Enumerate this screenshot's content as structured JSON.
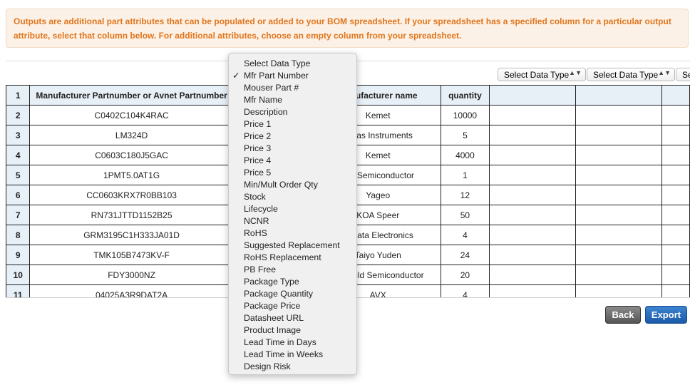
{
  "notice": "Outputs are additional part attributes that can be populated or added to your BOM spreadsheet. If your spreadsheet has a specified column for a particular output attribute, select that column below. For additional attributes, choose an empty column from your spreadsheet.",
  "selects": [
    "Select Data Type",
    "Select Data Type",
    "Select Data Type"
  ],
  "table": {
    "header": [
      "1",
      "Manufacturer Partnumber or Avnet Partnumber",
      "",
      "Manufacturer name",
      "quantity",
      "",
      "",
      ""
    ],
    "rows": [
      [
        "2",
        "C0402C104K4RAC",
        "",
        "Kemet",
        "10000"
      ],
      [
        "3",
        "LM324D",
        "",
        "Texas Instruments",
        "5"
      ],
      [
        "4",
        "C0603C180J5GAC",
        "",
        "Kemet",
        "4000"
      ],
      [
        "5",
        "1PMT5.0AT1G",
        "",
        "ON Semiconductor",
        "1"
      ],
      [
        "6",
        "CC0603KRX7R0BB103",
        "",
        "Yageo",
        "12"
      ],
      [
        "7",
        "RN731JTTD1152B25",
        "",
        "KOA Speer",
        "50"
      ],
      [
        "8",
        "GRM3195C1H333JA01D",
        "",
        "Murata Electronics",
        "4"
      ],
      [
        "9",
        "TMK105B7473KV-F",
        "",
        "Taiyo Yuden",
        "24"
      ],
      [
        "10",
        "FDY3000NZ",
        "",
        "Fairchild Semiconductor",
        "20"
      ],
      [
        "11",
        "04025A3R9DAT2A",
        "",
        "AVX",
        "4"
      ]
    ]
  },
  "buttons": {
    "back": "Back",
    "export": "Export"
  },
  "dropdown": {
    "selected": "Mfr Part Number",
    "check": "✓",
    "options": [
      "Select Data Type",
      "Mfr Part Number",
      "Mouser Part #",
      "Mfr Name",
      "Description",
      "Price 1",
      "Price 2",
      "Price 3",
      "Price 4",
      "Price 5",
      "Min/Mult Order Qty",
      "Stock",
      "Lifecycle",
      "NCNR",
      "RoHS",
      "Suggested Replacement",
      "RoHS Replacement",
      "PB Free",
      "Package Type",
      "Package Quantity",
      "Package Price",
      "Datasheet URL",
      "Product Image",
      "Lead Time in Days",
      "Lead Time in Weeks",
      "Design Risk"
    ]
  }
}
